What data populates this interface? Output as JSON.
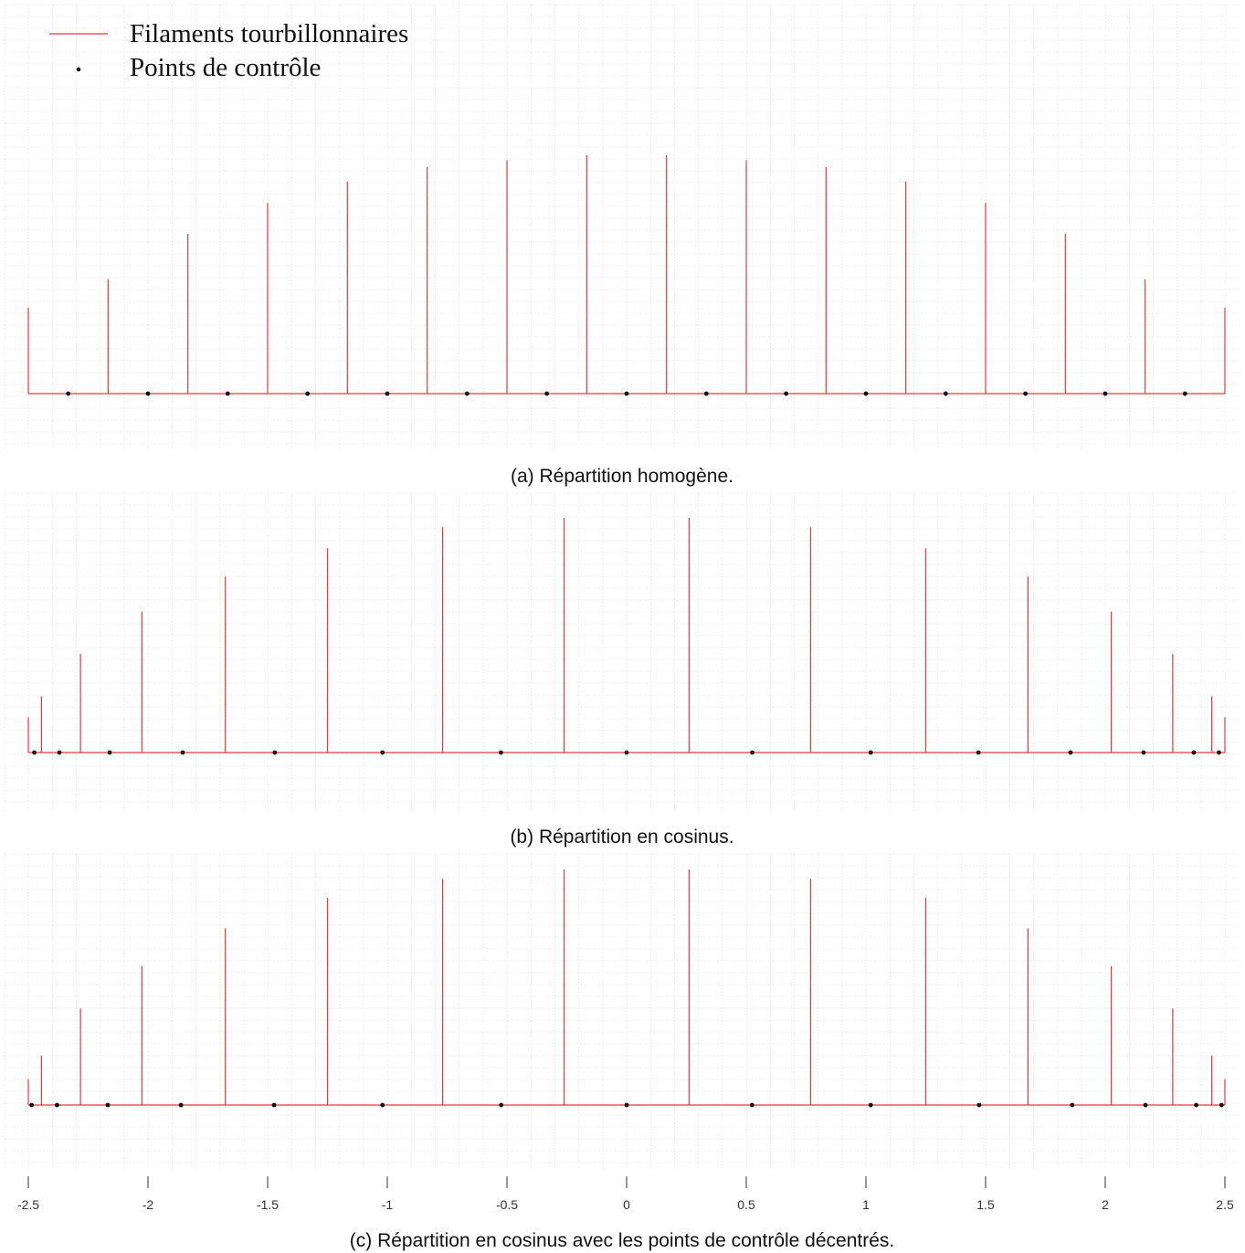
{
  "legend": {
    "entries": [
      {
        "label": "Filaments tourbillonnaires",
        "color": "#e8383d",
        "marker": "line"
      },
      {
        "label": "Points de contrôle",
        "color": "#111111",
        "marker": "dot"
      }
    ]
  },
  "colors": {
    "filament": "#e8383d",
    "point": "#111111",
    "grid": "#dcdcdc"
  },
  "x_axis": {
    "ticks": [
      -2.5,
      -2,
      -1.5,
      -1,
      -0.5,
      0,
      0.5,
      1,
      1.5,
      2,
      2.5
    ],
    "tick_labels": [
      "-2.5",
      "-2",
      "-1.5",
      "-1",
      "-0.5",
      "0",
      "0.5",
      "1",
      "1.5",
      "2",
      "2.5"
    ]
  },
  "chart_data": [
    {
      "type": "scatter",
      "caption": "(a) Répartition homogène.",
      "xlim": [
        -2.5,
        2.5
      ],
      "grid": true,
      "legend": "top-left",
      "filaments": {
        "x": [
          -2.5,
          -2.1667,
          -1.8333,
          -1.5,
          -1.1667,
          -0.8333,
          -0.5,
          -0.1667,
          0.1667,
          0.5,
          0.8333,
          1.1667,
          1.5,
          1.8333,
          2.1667,
          2.5
        ],
        "strength": [
          0.36,
          0.48,
          0.67,
          0.8,
          0.89,
          0.95,
          0.98,
          1.0,
          1.0,
          0.98,
          0.95,
          0.89,
          0.8,
          0.67,
          0.48,
          0.36
        ]
      },
      "control_points": {
        "x": [
          -2.3333,
          -2.0,
          -1.6667,
          -1.3333,
          -1.0,
          -0.6667,
          -0.3333,
          0.0,
          0.3333,
          0.6667,
          1.0,
          1.3333,
          1.6667,
          2.0,
          2.3333
        ]
      }
    },
    {
      "type": "scatter",
      "caption": "(b) Répartition en cosinus.",
      "xlim": [
        -2.5,
        2.5
      ],
      "grid": true,
      "filaments": {
        "x": [
          -2.5,
          -2.445,
          -2.282,
          -2.025,
          -1.677,
          -1.25,
          -0.769,
          -0.261,
          0.261,
          0.769,
          1.25,
          1.677,
          2.025,
          2.282,
          2.445,
          2.5
        ],
        "strength": [
          0.15,
          0.24,
          0.42,
          0.6,
          0.75,
          0.87,
          0.96,
          1.0,
          1.0,
          0.96,
          0.87,
          0.75,
          0.6,
          0.42,
          0.24,
          0.15
        ]
      },
      "control_points": {
        "x": [
          -2.475,
          -2.37,
          -2.16,
          -1.855,
          -1.47,
          -1.02,
          -0.525,
          0.0,
          0.525,
          1.02,
          1.47,
          1.855,
          2.16,
          2.37,
          2.475
        ]
      }
    },
    {
      "type": "scatter",
      "caption": "(c) Répartition en cosinus avec les points de contrôle décentrés.",
      "xlim": [
        -2.5,
        2.5
      ],
      "grid": true,
      "filaments": {
        "x": [
          -2.5,
          -2.445,
          -2.282,
          -2.025,
          -1.677,
          -1.25,
          -0.769,
          -0.261,
          0.261,
          0.769,
          1.25,
          1.677,
          2.025,
          2.282,
          2.445,
          2.5
        ],
        "strength": [
          0.11,
          0.21,
          0.41,
          0.59,
          0.75,
          0.88,
          0.96,
          1.0,
          1.0,
          0.96,
          0.88,
          0.75,
          0.59,
          0.41,
          0.21,
          0.11
        ]
      },
      "control_points": {
        "x": [
          -2.486,
          -2.38,
          -2.168,
          -1.862,
          -1.473,
          -1.02,
          -0.524,
          0.0,
          0.524,
          1.02,
          1.473,
          1.862,
          2.168,
          2.38,
          2.486
        ]
      }
    }
  ]
}
